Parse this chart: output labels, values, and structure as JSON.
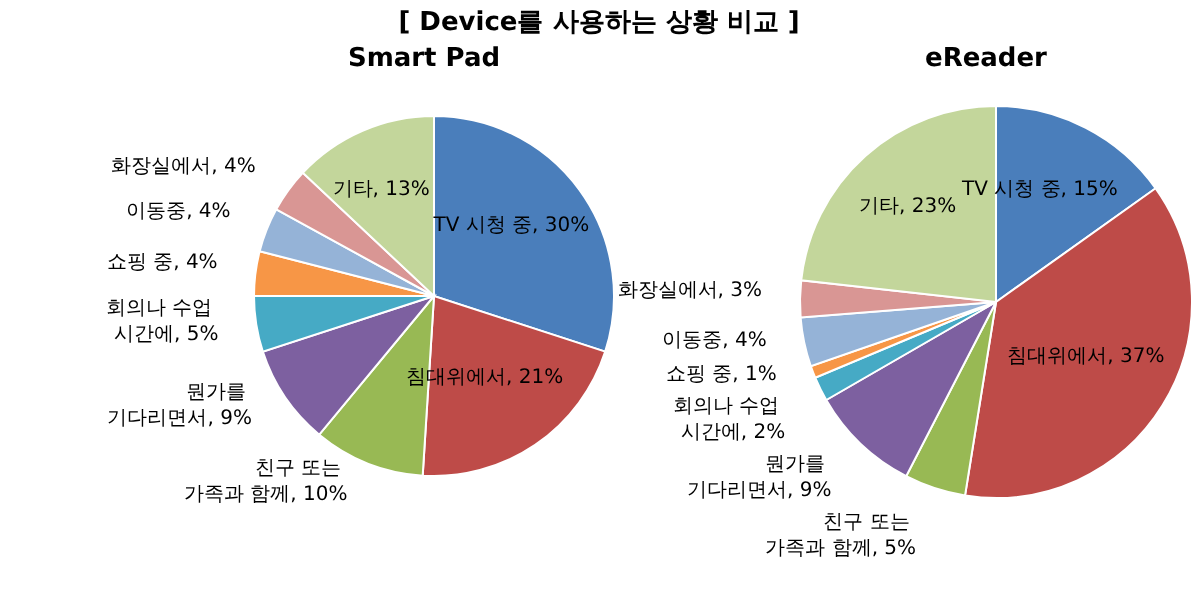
{
  "chart_data": [
    {
      "type": "pie",
      "title": "[ Device를 사용하는 상황 비교 ]",
      "subtitle": "Smart Pad",
      "categories": [
        "TV 시청 중",
        "침대위에서",
        "친구 또는\n가족과 함께",
        "뭔가를\n기다리면서",
        "회의나 수업\n시간에",
        "쇼핑 중",
        "이동중",
        "화장실에서",
        "기타"
      ],
      "values": [
        30,
        21,
        10,
        9,
        5,
        4,
        4,
        4,
        13
      ],
      "value_labels": [
        "30%",
        "21%",
        "10%",
        "9%",
        "5%",
        "4%",
        "4%",
        "4%",
        "13%"
      ],
      "colors": [
        "#4a7ebb",
        "#be4b48",
        "#98b954",
        "#7d60a0",
        "#46aac5",
        "#f79646",
        "#95b3d7",
        "#d99694",
        "#c3d69b"
      ]
    },
    {
      "type": "pie",
      "subtitle": "eReader",
      "categories": [
        "TV 시청 중",
        "침대위에서",
        "친구 또는\n가족과 함께",
        "뭔가를\n기다리면서",
        "회의나 수업\n시간에",
        "쇼핑 중",
        "이동중",
        "화장실에서",
        "기타"
      ],
      "values": [
        15,
        37,
        5,
        9,
        2,
        1,
        4,
        3,
        23
      ],
      "value_labels": [
        "15%",
        "37%",
        "5%",
        "9%",
        "2%",
        "1%",
        "4%",
        "3%",
        "23%"
      ],
      "colors": [
        "#4a7ebb",
        "#be4b48",
        "#98b954",
        "#7d60a0",
        "#46aac5",
        "#f79646",
        "#95b3d7",
        "#d99694",
        "#c3d69b"
      ]
    }
  ]
}
